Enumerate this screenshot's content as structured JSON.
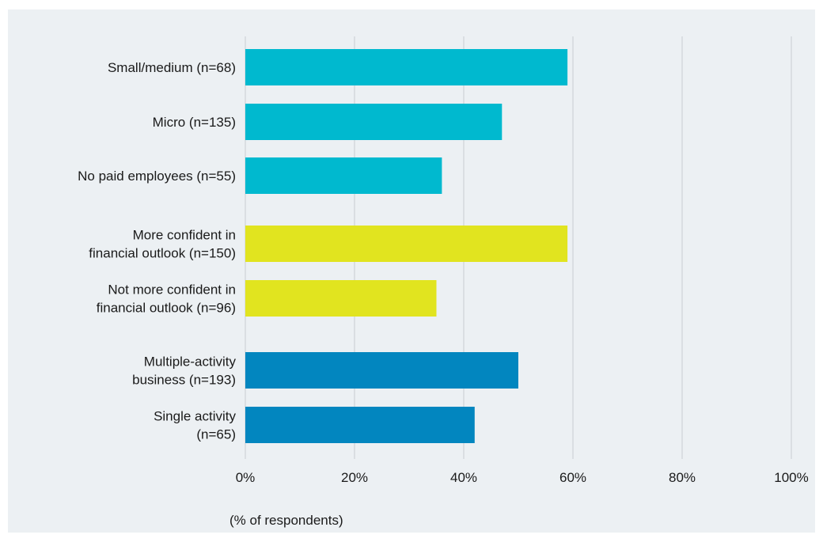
{
  "chart_data": {
    "type": "bar",
    "orientation": "horizontal",
    "categories": [
      [
        "Small/medium (n=68)"
      ],
      [
        "Micro (n=135)"
      ],
      [
        "No paid employees (n=55)"
      ],
      [
        "More confident in",
        "financial outlook (n=150)"
      ],
      [
        "Not more confident in",
        "financial outlook (n=96)"
      ],
      [
        "Multiple-activity",
        "business (n=193)"
      ],
      [
        "Single activity",
        "(n=65)"
      ]
    ],
    "values": [
      59,
      47,
      36,
      59,
      35,
      50,
      42
    ],
    "colors": [
      "#00b9cf",
      "#00b9cf",
      "#00b9cf",
      "#e1e41f",
      "#e1e41f",
      "#0286bf",
      "#0286bf"
    ],
    "xlim": [
      0,
      100
    ],
    "ticks": [
      0,
      20,
      40,
      60,
      80,
      100
    ],
    "tick_labels": [
      "0%",
      "20%",
      "40%",
      "60%",
      "80%",
      "100%"
    ],
    "xlabel": "(% of respondents)",
    "grid": true,
    "gridline_color": "#c9cdd1"
  }
}
